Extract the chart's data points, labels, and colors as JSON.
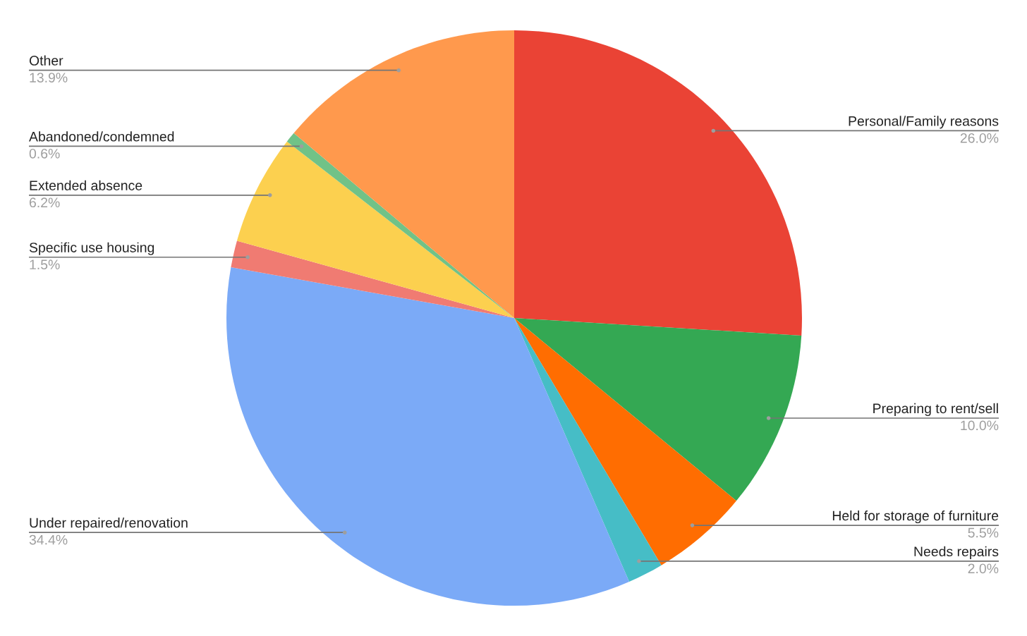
{
  "chart_data": {
    "type": "pie",
    "categories": [
      "Personal/Family reasons",
      "Preparing to rent/sell",
      "Held for storage of furniture",
      "Needs repairs",
      "Under repaired/renovation",
      "Specific use housing",
      "Extended absence",
      "Abandoned/condemned",
      "Other"
    ],
    "values": [
      26.0,
      10.0,
      5.5,
      2.0,
      34.4,
      1.5,
      6.2,
      0.6,
      13.9
    ],
    "value_labels": [
      "26.0%",
      "10.0%",
      "5.5%",
      "2.0%",
      "34.4%",
      "1.5%",
      "6.2%",
      "0.6%",
      "13.9%"
    ],
    "colors": [
      "#ea4335",
      "#34a853",
      "#ff6d01",
      "#46bdc6",
      "#7baaf7",
      "#f07b72",
      "#fcd04f",
      "#71c287",
      "#ff994d"
    ],
    "legend": false
  }
}
